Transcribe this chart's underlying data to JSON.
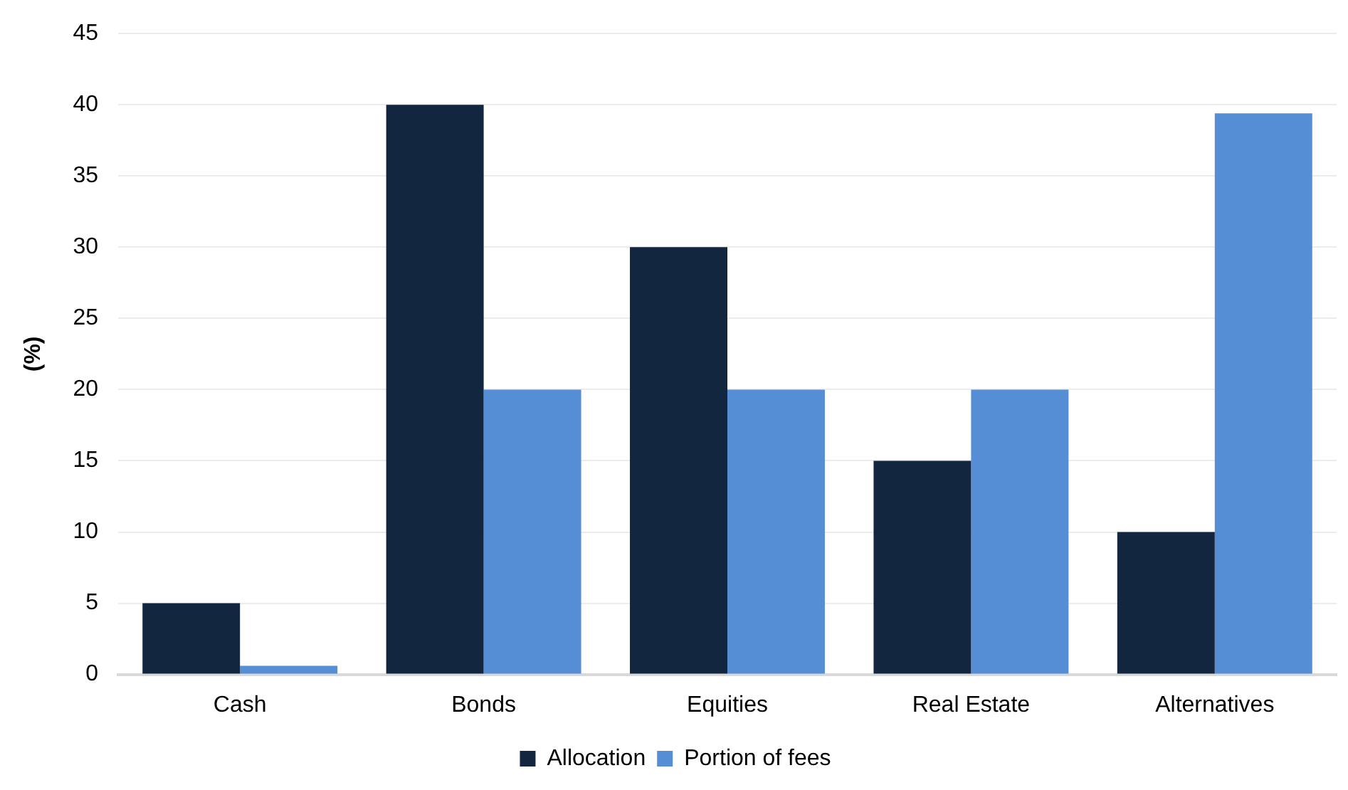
{
  "chart_data": {
    "type": "bar",
    "ylabel": "(%)",
    "categories": [
      "Cash",
      "Bonds",
      "Equities",
      "Real Estate",
      "Alternatives"
    ],
    "series": [
      {
        "name": "Allocation",
        "color": "#13263f",
        "values": [
          5,
          40,
          30,
          15,
          10
        ]
      },
      {
        "name": "Portion of fees",
        "color": "#558ed5",
        "values": [
          0.6,
          20,
          20,
          20,
          39.4
        ]
      }
    ],
    "ylim": [
      0,
      45
    ],
    "yticks": [
      0,
      5,
      10,
      15,
      20,
      25,
      30,
      35,
      40,
      45
    ],
    "grid": "y",
    "legend": "bottom"
  }
}
